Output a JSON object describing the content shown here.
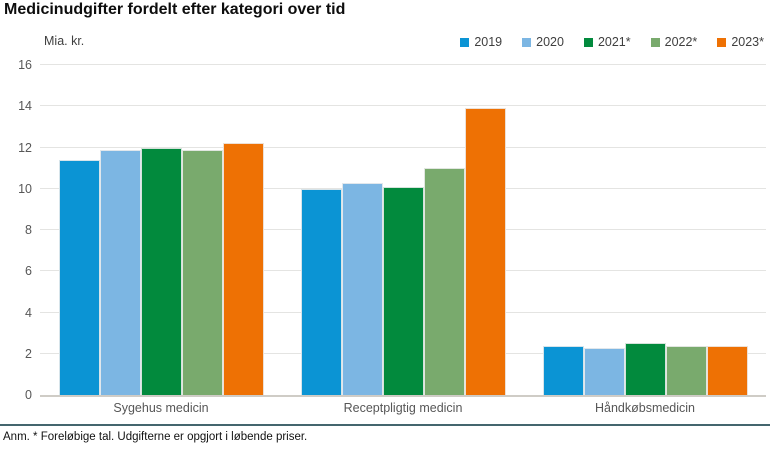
{
  "title": "Medicinudgifter fordelt efter kategori over tid",
  "footnote": "Anm. * Foreløbige tal. Udgifterne er opgjort i løbende priser.",
  "chart_data": {
    "type": "bar",
    "title": "Medicinudgifter fordelt efter kategori over tid",
    "ylabel": "Mia. kr.",
    "xlabel": "",
    "ylim": [
      0,
      16
    ],
    "ytick_step": 2,
    "grid": true,
    "legend_position": "top-right",
    "categories": [
      "Sygehus medicin",
      "Receptpligtig medicin",
      "Håndkøbsmedicin"
    ],
    "series": [
      {
        "name": "2019",
        "color": "#0b94d4",
        "values": [
          11.4,
          10.0,
          2.4
        ]
      },
      {
        "name": "2020",
        "color": "#7cb6e3",
        "values": [
          11.9,
          10.3,
          2.3
        ]
      },
      {
        "name": "2021*",
        "color": "#028a3d",
        "values": [
          12.0,
          10.1,
          2.5
        ]
      },
      {
        "name": "2022*",
        "color": "#79aa6d",
        "values": [
          11.9,
          11.0,
          2.4
        ]
      },
      {
        "name": "2023*",
        "color": "#ee7104",
        "values": [
          12.2,
          13.9,
          2.4
        ]
      }
    ],
    "colors": {
      "gridline": "#e4e4e2",
      "baseline": "#cfccc6",
      "footnote_rule": "#44666e"
    }
  }
}
